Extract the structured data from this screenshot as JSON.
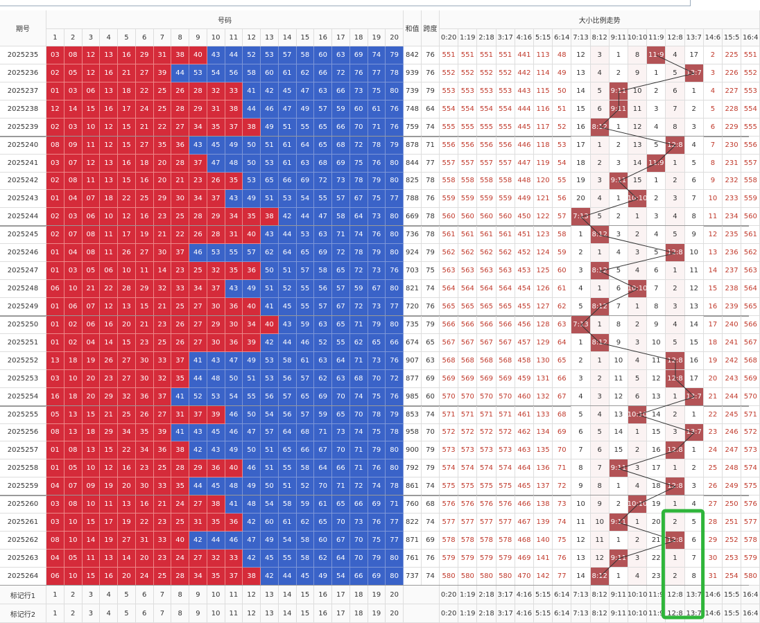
{
  "header": {
    "issue": "期号",
    "numbers": "号码",
    "sum": "和值",
    "span": "跨度",
    "trend": "大小比例走势",
    "number_columns": [
      "1",
      "2",
      "3",
      "4",
      "5",
      "6",
      "7",
      "8",
      "9",
      "10",
      "11",
      "12",
      "13",
      "14",
      "15",
      "16",
      "17",
      "18",
      "19",
      "20"
    ],
    "trend_columns": [
      "0:20",
      "1:19",
      "2:18",
      "3:17",
      "4:16",
      "5:15",
      "6:14",
      "7:13",
      "8:12",
      "9:11",
      "10:10",
      "11:9",
      "12:8",
      "13:7",
      "14:6",
      "15:5",
      "16:4"
    ]
  },
  "rows": [
    {
      "issue": "2025235",
      "numbers": [
        "03",
        "08",
        "12",
        "13",
        "16",
        "29",
        "31",
        "38",
        "40",
        "43",
        "44",
        "52",
        "53",
        "57",
        "58",
        "60",
        "63",
        "69",
        "74",
        "79"
      ],
      "sum": 842,
      "span": 76,
      "trend": [
        551,
        551,
        551,
        551,
        441,
        113,
        48,
        12,
        3,
        1,
        8,
        "11:9",
        4,
        17,
        2,
        225,
        551
      ]
    },
    {
      "issue": "2025236",
      "numbers": [
        "02",
        "05",
        "12",
        "16",
        "21",
        "27",
        "39",
        "44",
        "53",
        "54",
        "56",
        "58",
        "60",
        "61",
        "62",
        "66",
        "72",
        "76",
        "77",
        "78"
      ],
      "sum": 939,
      "span": 76,
      "trend": [
        552,
        552,
        552,
        552,
        442,
        114,
        49,
        13,
        4,
        2,
        9,
        1,
        5,
        "13:7",
        3,
        226,
        552
      ]
    },
    {
      "issue": "2025237",
      "numbers": [
        "01",
        "03",
        "06",
        "13",
        "18",
        "22",
        "25",
        "26",
        "28",
        "32",
        "33",
        "41",
        "42",
        "45",
        "47",
        "63",
        "66",
        "73",
        "75",
        "80"
      ],
      "sum": 739,
      "span": 79,
      "trend": [
        553,
        553,
        553,
        553,
        443,
        115,
        50,
        14,
        5,
        "9:11",
        10,
        2,
        6,
        1,
        4,
        227,
        553
      ]
    },
    {
      "issue": "2025238",
      "numbers": [
        "12",
        "14",
        "15",
        "16",
        "17",
        "24",
        "25",
        "28",
        "29",
        "31",
        "38",
        "44",
        "46",
        "47",
        "49",
        "57",
        "59",
        "60",
        "61",
        "76"
      ],
      "sum": 748,
      "span": 64,
      "trend": [
        554,
        554,
        554,
        554,
        444,
        116,
        51,
        15,
        6,
        "9:11",
        11,
        3,
        7,
        2,
        5,
        228,
        554
      ]
    },
    {
      "issue": "2025239",
      "numbers": [
        "02",
        "03",
        "10",
        "12",
        "15",
        "21",
        "22",
        "27",
        "34",
        "35",
        "37",
        "38",
        "49",
        "51",
        "55",
        "65",
        "66",
        "70",
        "71",
        "76"
      ],
      "sum": 759,
      "span": 74,
      "trend": [
        555,
        555,
        555,
        555,
        445,
        117,
        52,
        16,
        "8:12",
        1,
        12,
        4,
        8,
        3,
        6,
        229,
        555
      ]
    },
    {
      "issue": "2025240",
      "numbers": [
        "08",
        "09",
        "11",
        "12",
        "15",
        "27",
        "35",
        "36",
        "43",
        "45",
        "49",
        "50",
        "51",
        "61",
        "64",
        "65",
        "68",
        "72",
        "78",
        "79"
      ],
      "sum": 878,
      "span": 71,
      "trend": [
        556,
        556,
        556,
        556,
        446,
        118,
        53,
        17,
        1,
        2,
        13,
        5,
        "12:8",
        4,
        7,
        230,
        556
      ]
    },
    {
      "issue": "2025241",
      "numbers": [
        "03",
        "07",
        "12",
        "13",
        "16",
        "18",
        "20",
        "28",
        "37",
        "47",
        "48",
        "50",
        "53",
        "61",
        "63",
        "68",
        "69",
        "75",
        "76",
        "80"
      ],
      "sum": 844,
      "span": 77,
      "trend": [
        557,
        557,
        557,
        557,
        447,
        119,
        54,
        18,
        2,
        3,
        14,
        "11:9",
        1,
        5,
        8,
        231,
        557
      ]
    },
    {
      "issue": "2025242",
      "numbers": [
        "02",
        "08",
        "11",
        "13",
        "15",
        "16",
        "20",
        "21",
        "23",
        "26",
        "35",
        "53",
        "65",
        "66",
        "69",
        "72",
        "73",
        "78",
        "79",
        "80"
      ],
      "sum": 825,
      "span": 78,
      "trend": [
        558,
        558,
        558,
        558,
        448,
        120,
        55,
        19,
        3,
        "9:11",
        15,
        1,
        2,
        6,
        9,
        232,
        558
      ]
    },
    {
      "issue": "2025243",
      "numbers": [
        "01",
        "04",
        "07",
        "18",
        "22",
        "25",
        "29",
        "30",
        "34",
        "37",
        "43",
        "49",
        "51",
        "53",
        "54",
        "55",
        "57",
        "67",
        "75",
        "77"
      ],
      "sum": 788,
      "span": 76,
      "trend": [
        559,
        559,
        559,
        559,
        449,
        121,
        56,
        20,
        4,
        1,
        "10:10",
        2,
        3,
        7,
        10,
        233,
        559
      ]
    },
    {
      "issue": "2025244",
      "numbers": [
        "02",
        "03",
        "06",
        "10",
        "12",
        "16",
        "23",
        "25",
        "28",
        "29",
        "34",
        "35",
        "38",
        "42",
        "44",
        "47",
        "58",
        "64",
        "73",
        "80"
      ],
      "sum": 669,
      "span": 78,
      "trend": [
        560,
        560,
        560,
        560,
        450,
        122,
        57,
        "7:13",
        5,
        2,
        1,
        3,
        4,
        8,
        11,
        234,
        560
      ]
    },
    {
      "issue": "2025245",
      "numbers": [
        "02",
        "07",
        "08",
        "11",
        "17",
        "19",
        "21",
        "22",
        "26",
        "28",
        "31",
        "40",
        "43",
        "44",
        "53",
        "63",
        "71",
        "74",
        "76",
        "80"
      ],
      "sum": 736,
      "span": 78,
      "trend": [
        561,
        561,
        561,
        561,
        451,
        123,
        58,
        1,
        "8:12",
        3,
        2,
        4,
        5,
        9,
        12,
        235,
        561
      ]
    },
    {
      "issue": "2025246",
      "numbers": [
        "01",
        "04",
        "08",
        "11",
        "26",
        "27",
        "30",
        "37",
        "46",
        "53",
        "55",
        "57",
        "62",
        "64",
        "65",
        "69",
        "72",
        "78",
        "79",
        "80"
      ],
      "sum": 924,
      "span": 79,
      "trend": [
        562,
        562,
        562,
        562,
        452,
        124,
        59,
        2,
        1,
        4,
        3,
        5,
        "12:8",
        10,
        13,
        236,
        562
      ]
    },
    {
      "issue": "2025247",
      "numbers": [
        "01",
        "03",
        "05",
        "06",
        "10",
        "11",
        "14",
        "23",
        "25",
        "32",
        "35",
        "36",
        "50",
        "51",
        "57",
        "58",
        "65",
        "72",
        "73",
        "76"
      ],
      "sum": 703,
      "span": 75,
      "trend": [
        563,
        563,
        563,
        563,
        453,
        125,
        60,
        3,
        "8:12",
        5,
        4,
        6,
        1,
        11,
        14,
        237,
        563
      ]
    },
    {
      "issue": "2025248",
      "numbers": [
        "06",
        "10",
        "21",
        "22",
        "28",
        "29",
        "32",
        "33",
        "34",
        "37",
        "43",
        "49",
        "51",
        "52",
        "55",
        "56",
        "57",
        "59",
        "67",
        "80"
      ],
      "sum": 821,
      "span": 74,
      "trend": [
        564,
        564,
        564,
        564,
        454,
        126,
        61,
        4,
        1,
        6,
        "10:10",
        7,
        2,
        12,
        15,
        238,
        564
      ]
    },
    {
      "issue": "2025249",
      "numbers": [
        "01",
        "06",
        "07",
        "12",
        "13",
        "15",
        "21",
        "25",
        "27",
        "30",
        "36",
        "40",
        "41",
        "45",
        "55",
        "57",
        "67",
        "72",
        "73",
        "77"
      ],
      "sum": 720,
      "span": 76,
      "trend": [
        565,
        565,
        565,
        565,
        455,
        127,
        62,
        5,
        "8:12",
        7,
        1,
        8,
        3,
        13,
        16,
        239,
        565
      ]
    },
    {
      "issue": "2025250",
      "numbers": [
        "01",
        "02",
        "06",
        "16",
        "20",
        "21",
        "23",
        "26",
        "27",
        "29",
        "30",
        "34",
        "40",
        "43",
        "59",
        "63",
        "65",
        "71",
        "79",
        "80"
      ],
      "sum": 735,
      "span": 79,
      "trend": [
        566,
        566,
        566,
        566,
        456,
        128,
        63,
        "7:13",
        1,
        8,
        2,
        9,
        4,
        14,
        17,
        240,
        566
      ]
    },
    {
      "issue": "2025251",
      "numbers": [
        "01",
        "02",
        "04",
        "14",
        "15",
        "23",
        "25",
        "26",
        "27",
        "30",
        "36",
        "39",
        "42",
        "44",
        "46",
        "52",
        "55",
        "62",
        "65",
        "66"
      ],
      "sum": 674,
      "span": 65,
      "trend": [
        567,
        567,
        567,
        567,
        457,
        129,
        64,
        1,
        "8:12",
        9,
        3,
        10,
        5,
        15,
        18,
        241,
        567
      ]
    },
    {
      "issue": "2025252",
      "numbers": [
        "13",
        "18",
        "19",
        "26",
        "27",
        "30",
        "33",
        "37",
        "41",
        "43",
        "47",
        "49",
        "53",
        "58",
        "61",
        "63",
        "64",
        "71",
        "73",
        "76"
      ],
      "sum": 907,
      "span": 63,
      "trend": [
        568,
        568,
        568,
        568,
        458,
        130,
        65,
        2,
        1,
        10,
        4,
        11,
        "12:8",
        16,
        19,
        242,
        568
      ]
    },
    {
      "issue": "2025253",
      "numbers": [
        "03",
        "10",
        "20",
        "23",
        "27",
        "30",
        "32",
        "35",
        "44",
        "48",
        "50",
        "51",
        "53",
        "56",
        "57",
        "62",
        "63",
        "68",
        "70",
        "72"
      ],
      "sum": 877,
      "span": 69,
      "trend": [
        569,
        569,
        569,
        569,
        459,
        131,
        66,
        3,
        2,
        11,
        5,
        12,
        "12:8",
        17,
        20,
        243,
        569
      ]
    },
    {
      "issue": "2025254",
      "numbers": [
        "16",
        "18",
        "20",
        "29",
        "32",
        "36",
        "37",
        "41",
        "52",
        "53",
        "54",
        "55",
        "56",
        "57",
        "65",
        "69",
        "70",
        "74",
        "75",
        "76"
      ],
      "sum": 985,
      "span": 60,
      "trend": [
        570,
        570,
        570,
        570,
        460,
        132,
        67,
        4,
        3,
        12,
        6,
        13,
        1,
        "13:7",
        21,
        244,
        570
      ]
    },
    {
      "issue": "2025255",
      "numbers": [
        "05",
        "13",
        "15",
        "21",
        "25",
        "26",
        "27",
        "31",
        "37",
        "39",
        "46",
        "50",
        "54",
        "56",
        "57",
        "59",
        "65",
        "70",
        "78",
        "79"
      ],
      "sum": 853,
      "span": 74,
      "trend": [
        571,
        571,
        571,
        571,
        461,
        133,
        68,
        5,
        4,
        13,
        "10:10",
        14,
        2,
        1,
        22,
        245,
        571
      ]
    },
    {
      "issue": "2025256",
      "numbers": [
        "08",
        "13",
        "18",
        "29",
        "34",
        "35",
        "39",
        "41",
        "43",
        "45",
        "46",
        "47",
        "57",
        "64",
        "68",
        "71",
        "73",
        "74",
        "75",
        "78"
      ],
      "sum": 958,
      "span": 70,
      "trend": [
        572,
        572,
        572,
        572,
        462,
        134,
        69,
        6,
        5,
        14,
        1,
        15,
        3,
        "13:7",
        23,
        246,
        572
      ]
    },
    {
      "issue": "2025257",
      "numbers": [
        "01",
        "08",
        "13",
        "15",
        "22",
        "34",
        "36",
        "38",
        "42",
        "43",
        "49",
        "50",
        "51",
        "65",
        "66",
        "67",
        "70",
        "71",
        "79",
        "80"
      ],
      "sum": 900,
      "span": 79,
      "trend": [
        573,
        573,
        573,
        573,
        463,
        135,
        70,
        7,
        6,
        15,
        2,
        16,
        "12:8",
        1,
        24,
        247,
        573
      ]
    },
    {
      "issue": "2025258",
      "numbers": [
        "01",
        "05",
        "10",
        "12",
        "16",
        "23",
        "25",
        "28",
        "29",
        "36",
        "40",
        "46",
        "51",
        "55",
        "58",
        "64",
        "66",
        "71",
        "76",
        "80"
      ],
      "sum": 792,
      "span": 79,
      "trend": [
        574,
        574,
        574,
        574,
        464,
        136,
        71,
        8,
        7,
        "9:11",
        3,
        17,
        1,
        2,
        25,
        248,
        574
      ]
    },
    {
      "issue": "2025259",
      "numbers": [
        "04",
        "07",
        "09",
        "19",
        "20",
        "30",
        "33",
        "35",
        "44",
        "45",
        "48",
        "49",
        "50",
        "51",
        "52",
        "70",
        "71",
        "72",
        "74",
        "78"
      ],
      "sum": 861,
      "span": 74,
      "trend": [
        575,
        575,
        575,
        575,
        465,
        137,
        72,
        9,
        8,
        1,
        4,
        18,
        "12:8",
        3,
        26,
        249,
        575
      ]
    },
    {
      "issue": "2025260",
      "numbers": [
        "03",
        "08",
        "10",
        "11",
        "13",
        "16",
        "21",
        "24",
        "27",
        "38",
        "41",
        "48",
        "54",
        "58",
        "59",
        "61",
        "65",
        "66",
        "69",
        "71"
      ],
      "sum": 760,
      "span": 68,
      "trend": [
        576,
        576,
        576,
        576,
        466,
        138,
        73,
        10,
        9,
        2,
        "10:10",
        19,
        1,
        4,
        27,
        250,
        576
      ]
    },
    {
      "issue": "2025261",
      "numbers": [
        "03",
        "10",
        "15",
        "17",
        "19",
        "22",
        "23",
        "25",
        "31",
        "35",
        "36",
        "42",
        "60",
        "61",
        "62",
        "65",
        "70",
        "73",
        "76",
        "77"
      ],
      "sum": 822,
      "span": 74,
      "trend": [
        577,
        577,
        577,
        577,
        467,
        139,
        74,
        11,
        10,
        "9:11",
        1,
        20,
        2,
        5,
        28,
        251,
        577
      ]
    },
    {
      "issue": "2025262",
      "numbers": [
        "08",
        "10",
        "14",
        "19",
        "27",
        "31",
        "33",
        "40",
        "42",
        "44",
        "46",
        "47",
        "49",
        "54",
        "58",
        "60",
        "67",
        "70",
        "75",
        "77"
      ],
      "sum": 871,
      "span": 69,
      "trend": [
        578,
        578,
        578,
        578,
        468,
        140,
        75,
        12,
        11,
        1,
        2,
        21,
        "12:8",
        6,
        29,
        252,
        578
      ]
    },
    {
      "issue": "2025263",
      "numbers": [
        "04",
        "05",
        "11",
        "13",
        "14",
        "20",
        "23",
        "24",
        "27",
        "32",
        "33",
        "42",
        "45",
        "55",
        "58",
        "62",
        "64",
        "70",
        "79",
        "80"
      ],
      "sum": 761,
      "span": 76,
      "trend": [
        579,
        579,
        579,
        579,
        469,
        141,
        76,
        13,
        12,
        "9:11",
        3,
        22,
        1,
        7,
        30,
        253,
        579
      ]
    },
    {
      "issue": "2025264",
      "numbers": [
        "06",
        "10",
        "15",
        "16",
        "20",
        "24",
        "25",
        "28",
        "34",
        "35",
        "37",
        "38",
        "42",
        "44",
        "45",
        "49",
        "54",
        "66",
        "69",
        "80"
      ],
      "sum": 737,
      "span": 74,
      "trend": [
        580,
        580,
        580,
        580,
        470,
        142,
        77,
        14,
        "8:12",
        1,
        4,
        23,
        2,
        8,
        31,
        254,
        580
      ]
    }
  ],
  "footer": [
    "标记行1",
    "标记行2"
  ]
}
